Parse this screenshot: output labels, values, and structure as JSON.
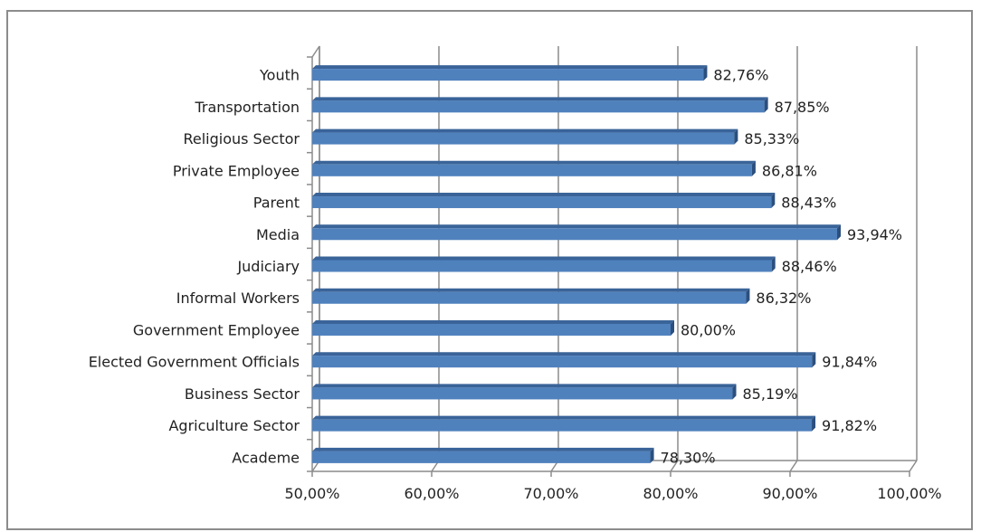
{
  "chart_data": {
    "type": "bar",
    "orientation": "horizontal",
    "three_d": true,
    "categories": [
      "Youth",
      "Transportation",
      "Religious Sector",
      "Private Employee",
      "Parent",
      "Media",
      "Judiciary",
      "Informal Workers",
      "Government Employee",
      "Elected Government Officials",
      "Business Sector",
      "Agriculture Sector",
      "Academe"
    ],
    "values": [
      82.76,
      87.85,
      85.33,
      86.81,
      88.43,
      93.94,
      88.46,
      86.32,
      80.0,
      91.84,
      85.19,
      91.82,
      78.3
    ],
    "data_labels": [
      "82,76%",
      "87,85%",
      "85,33%",
      "86,81%",
      "88,43%",
      "93,94%",
      "88,46%",
      "86,32%",
      "80,00%",
      "91,84%",
      "85,19%",
      "91,82%",
      "78,30%"
    ],
    "xlim": [
      50,
      100
    ],
    "x_ticks": [
      50,
      60,
      70,
      80,
      90,
      100
    ],
    "x_tick_labels": [
      "50,00%",
      "60,00%",
      "70,00%",
      "80,00%",
      "90,00%",
      "100,00%"
    ],
    "title": "",
    "xlabel": "",
    "ylabel": "",
    "grid": "vertical",
    "legend": "none",
    "bar_color": "#4f81bd",
    "bar_top_color": "#3a6499",
    "bar_side_color": "#2b4f7e"
  }
}
